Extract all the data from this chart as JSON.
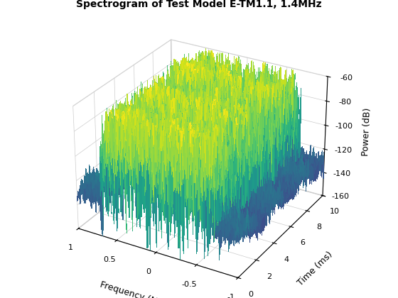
{
  "title": "Spectrogram of Test Model E-TM1.1, 1.4MHz",
  "xlabel": "Frequency (MHz)",
  "ylabel": "Time (ms)",
  "zlabel": "Power (dB)",
  "freq_min": -1.0,
  "freq_max": 1.0,
  "time_min": 0,
  "time_max": 10,
  "power_min": -160,
  "power_max": -60,
  "freq_ticks": [
    1,
    0.5,
    0,
    -0.5,
    -1
  ],
  "time_ticks": [
    0,
    2,
    4,
    6,
    8,
    10
  ],
  "power_ticks": [
    -60,
    -80,
    -100,
    -120,
    -140,
    -160
  ],
  "noise_floor": -120,
  "signal_level": -82,
  "lte_bw_mhz": 1.4,
  "n_freq": 150,
  "n_time": 120,
  "colormap": "viridis",
  "background_color": "#ffffff",
  "seed": 42,
  "elev": 28,
  "azim": -60
}
